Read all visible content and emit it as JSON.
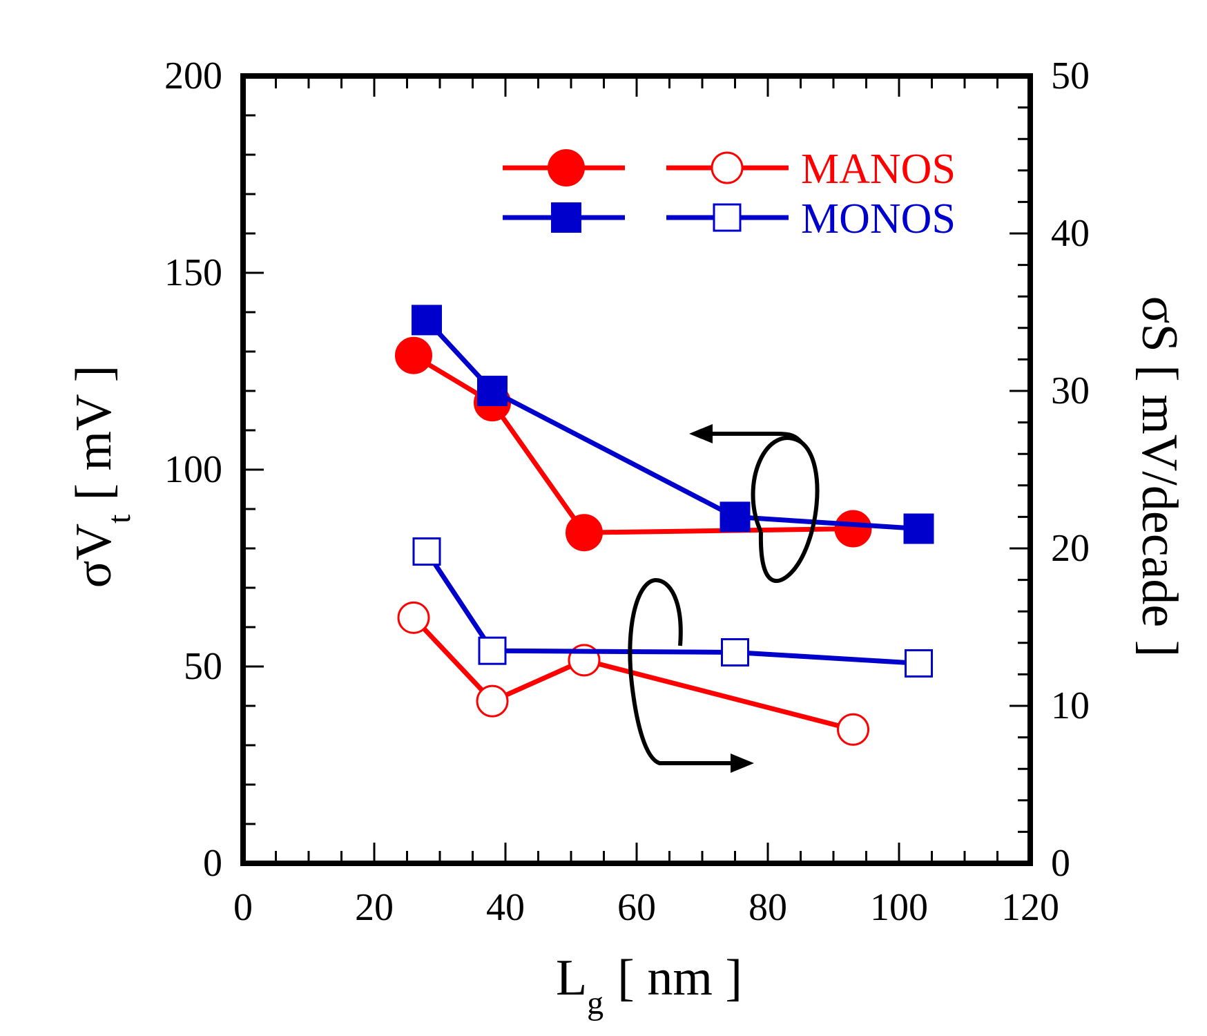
{
  "chart_data": {
    "type": "line",
    "title": "",
    "x_axis": {
      "label_main": "L",
      "label_sub": "g",
      "label_unit": "[ nm ]",
      "range": [
        0,
        120
      ],
      "ticks": [
        0,
        20,
        40,
        60,
        80,
        100,
        120
      ],
      "minor_step": 5
    },
    "y_left": {
      "label_main": "σV",
      "label_sub": "t",
      "label_unit": "[ mV ]",
      "range": [
        0,
        200
      ],
      "ticks": [
        0,
        50,
        100,
        150,
        200
      ],
      "minor_step": 10
    },
    "y_right": {
      "label": "σS [ mV/decade ]",
      "range": [
        0,
        50
      ],
      "ticks": [
        0,
        10,
        20,
        30,
        40,
        50
      ],
      "minor_step": 2
    },
    "series": [
      {
        "name": "MANOS σVt",
        "axis": "left",
        "color": "#ff0000",
        "marker": "circle",
        "filled": true,
        "x": [
          26,
          38,
          52,
          93
        ],
        "y": [
          129,
          117,
          84,
          85
        ]
      },
      {
        "name": "MONOS σVt",
        "axis": "left",
        "color": "#0000cc",
        "marker": "square",
        "filled": true,
        "x": [
          28,
          38,
          75,
          103
        ],
        "y": [
          138,
          120,
          88,
          85
        ]
      },
      {
        "name": "MANOS σS",
        "axis": "right",
        "color": "#ff0000",
        "marker": "circle",
        "filled": false,
        "x": [
          26,
          38,
          52,
          93
        ],
        "y": [
          15.6,
          10.3,
          12.9,
          8.5
        ]
      },
      {
        "name": "MONOS σS",
        "axis": "right",
        "color": "#0000cc",
        "marker": "square",
        "filled": false,
        "x": [
          28,
          38,
          75,
          103
        ],
        "y": [
          19.8,
          13.5,
          13.4,
          12.7
        ]
      }
    ],
    "legend": {
      "placement": "top-right",
      "entries": [
        {
          "label": "MANOS",
          "color": "#ff0000",
          "marker": "circle"
        },
        {
          "label": "MONOS",
          "color": "#0000cc",
          "marker": "square"
        }
      ]
    },
    "annotations": [
      {
        "kind": "arrow-loop",
        "points_to": "left axis",
        "encircles": "upper curves"
      },
      {
        "kind": "arrow-loop",
        "points_to": "right axis",
        "encircles": "lower curves"
      }
    ]
  }
}
